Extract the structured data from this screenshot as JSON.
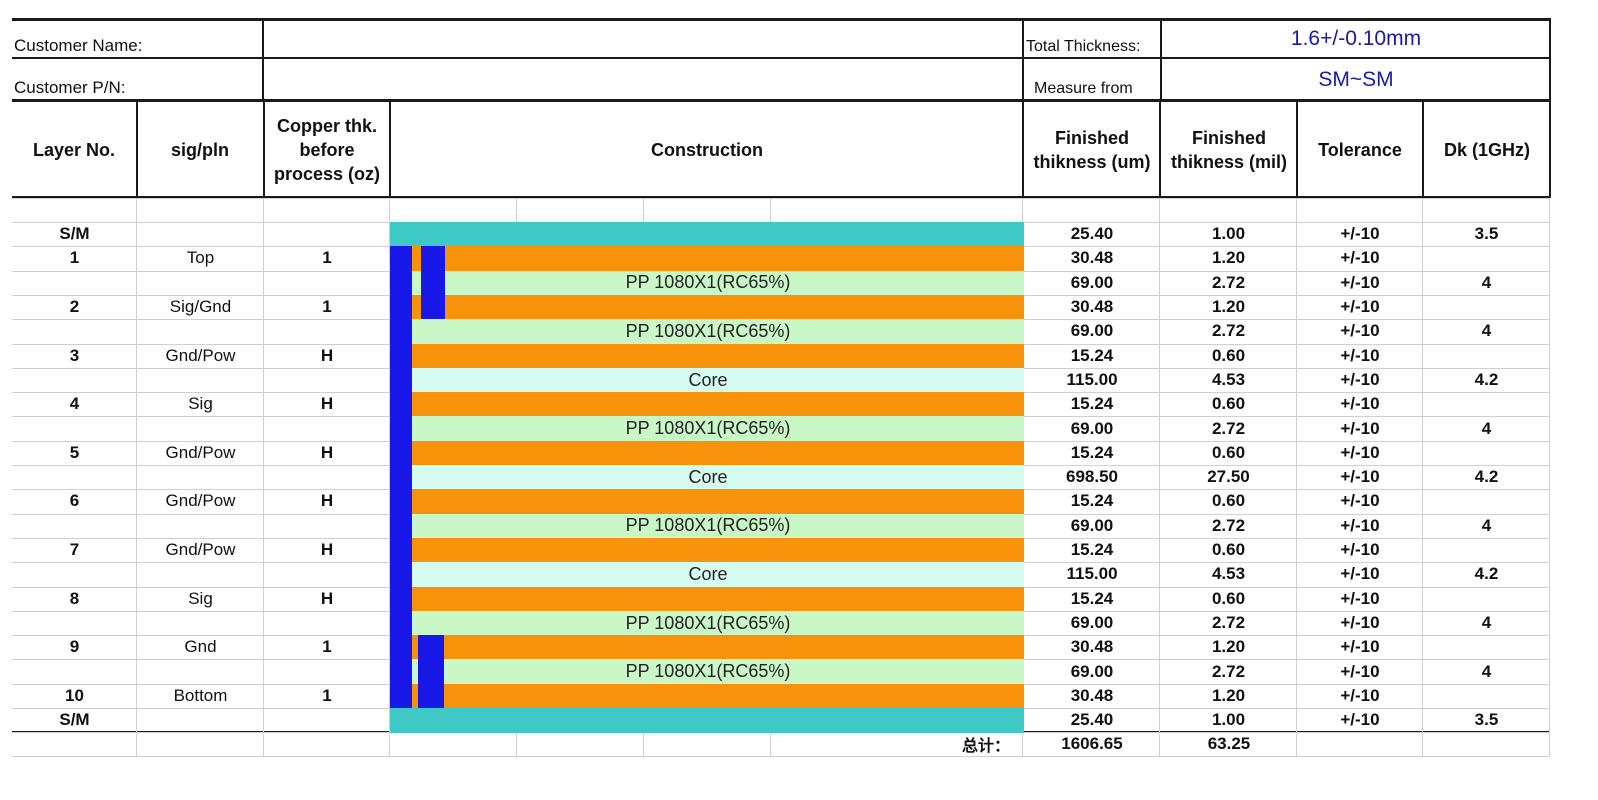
{
  "header": {
    "customer_name_label": "Customer Name:",
    "customer_name_value": "",
    "customer_pn_label": "Customer P/N:",
    "customer_pn_value": "",
    "total_thickness_label": "Total Thickness:",
    "total_thickness_value": "1.6+/-0.10mm",
    "measure_from_label": "Measure from",
    "measure_from_value": "SM~SM"
  },
  "columns": {
    "layer_no": "Layer No.",
    "sig_pln": "sig/pln",
    "copper": "Copper thk. before process (oz)",
    "construction": "Construction",
    "finished_um": "Finished thikness (um)",
    "finished_mil": "Finished thikness (mil)",
    "tolerance": "Tolerance",
    "dk": "Dk (1GHz)"
  },
  "colors": {
    "soldermask": "#3ec8c6",
    "copper": "#f8920a",
    "prepreg": "#caf7c7",
    "core": "#d6fbf1",
    "via": "#1818e8",
    "text_blue": "#1a1aa6"
  },
  "rows": [
    {
      "layer": "S/M",
      "sig": "",
      "oz": "",
      "kind": "sm",
      "label": "",
      "um": "25.40",
      "mil": "1.00",
      "tol": "+/-10",
      "dk": "3.5"
    },
    {
      "layer": "1",
      "sig": "Top",
      "oz": "1",
      "kind": "cu",
      "label": "",
      "um": "30.48",
      "mil": "1.20",
      "tol": "+/-10",
      "dk": ""
    },
    {
      "layer": "",
      "sig": "",
      "oz": "",
      "kind": "pp",
      "label": "PP 1080X1(RC65%)",
      "um": "69.00",
      "mil": "2.72",
      "tol": "+/-10",
      "dk": "4"
    },
    {
      "layer": "2",
      "sig": "Sig/Gnd",
      "oz": "1",
      "kind": "cu",
      "label": "",
      "um": "30.48",
      "mil": "1.20",
      "tol": "+/-10",
      "dk": ""
    },
    {
      "layer": "",
      "sig": "",
      "oz": "",
      "kind": "pp",
      "label": "PP 1080X1(RC65%)",
      "um": "69.00",
      "mil": "2.72",
      "tol": "+/-10",
      "dk": "4"
    },
    {
      "layer": "3",
      "sig": "Gnd/Pow",
      "oz": "H",
      "kind": "cu",
      "label": "",
      "um": "15.24",
      "mil": "0.60",
      "tol": "+/-10",
      "dk": ""
    },
    {
      "layer": "",
      "sig": "",
      "oz": "",
      "kind": "core",
      "label": "Core",
      "um": "115.00",
      "mil": "4.53",
      "tol": "+/-10",
      "dk": "4.2"
    },
    {
      "layer": "4",
      "sig": "Sig",
      "oz": "H",
      "kind": "cu",
      "label": "",
      "um": "15.24",
      "mil": "0.60",
      "tol": "+/-10",
      "dk": ""
    },
    {
      "layer": "",
      "sig": "",
      "oz": "",
      "kind": "pp",
      "label": "PP 1080X1(RC65%)",
      "um": "69.00",
      "mil": "2.72",
      "tol": "+/-10",
      "dk": "4"
    },
    {
      "layer": "5",
      "sig": "Gnd/Pow",
      "oz": "H",
      "kind": "cu",
      "label": "",
      "um": "15.24",
      "mil": "0.60",
      "tol": "+/-10",
      "dk": ""
    },
    {
      "layer": "",
      "sig": "",
      "oz": "",
      "kind": "core",
      "label": "Core",
      "um": "698.50",
      "mil": "27.50",
      "tol": "+/-10",
      "dk": "4.2"
    },
    {
      "layer": "6",
      "sig": "Gnd/Pow",
      "oz": "H",
      "kind": "cu",
      "label": "",
      "um": "15.24",
      "mil": "0.60",
      "tol": "+/-10",
      "dk": ""
    },
    {
      "layer": "",
      "sig": "",
      "oz": "",
      "kind": "pp",
      "label": "PP 1080X1(RC65%)",
      "um": "69.00",
      "mil": "2.72",
      "tol": "+/-10",
      "dk": "4"
    },
    {
      "layer": "7",
      "sig": "Gnd/Pow",
      "oz": "H",
      "kind": "cu",
      "label": "",
      "um": "15.24",
      "mil": "0.60",
      "tol": "+/-10",
      "dk": ""
    },
    {
      "layer": "",
      "sig": "",
      "oz": "",
      "kind": "core",
      "label": "Core",
      "um": "115.00",
      "mil": "4.53",
      "tol": "+/-10",
      "dk": "4.2"
    },
    {
      "layer": "8",
      "sig": "Sig",
      "oz": "H",
      "kind": "cu",
      "label": "",
      "um": "15.24",
      "mil": "0.60",
      "tol": "+/-10",
      "dk": ""
    },
    {
      "layer": "",
      "sig": "",
      "oz": "",
      "kind": "pp",
      "label": "PP 1080X1(RC65%)",
      "um": "69.00",
      "mil": "2.72",
      "tol": "+/-10",
      "dk": "4"
    },
    {
      "layer": "9",
      "sig": "Gnd",
      "oz": "1",
      "kind": "cu",
      "label": "",
      "um": "30.48",
      "mil": "1.20",
      "tol": "+/-10",
      "dk": ""
    },
    {
      "layer": "",
      "sig": "",
      "oz": "",
      "kind": "pp",
      "label": "PP 1080X1(RC65%)",
      "um": "69.00",
      "mil": "2.72",
      "tol": "+/-10",
      "dk": "4"
    },
    {
      "layer": "10",
      "sig": "Bottom",
      "oz": "1",
      "kind": "cu",
      "label": "",
      "um": "30.48",
      "mil": "1.20",
      "tol": "+/-10",
      "dk": ""
    },
    {
      "layer": "S/M",
      "sig": "",
      "oz": "",
      "kind": "sm",
      "label": "",
      "um": "25.40",
      "mil": "1.00",
      "tol": "+/-10",
      "dk": "3.5"
    }
  ],
  "total": {
    "label": "总计：",
    "um": "1606.65",
    "mil": "63.25"
  }
}
